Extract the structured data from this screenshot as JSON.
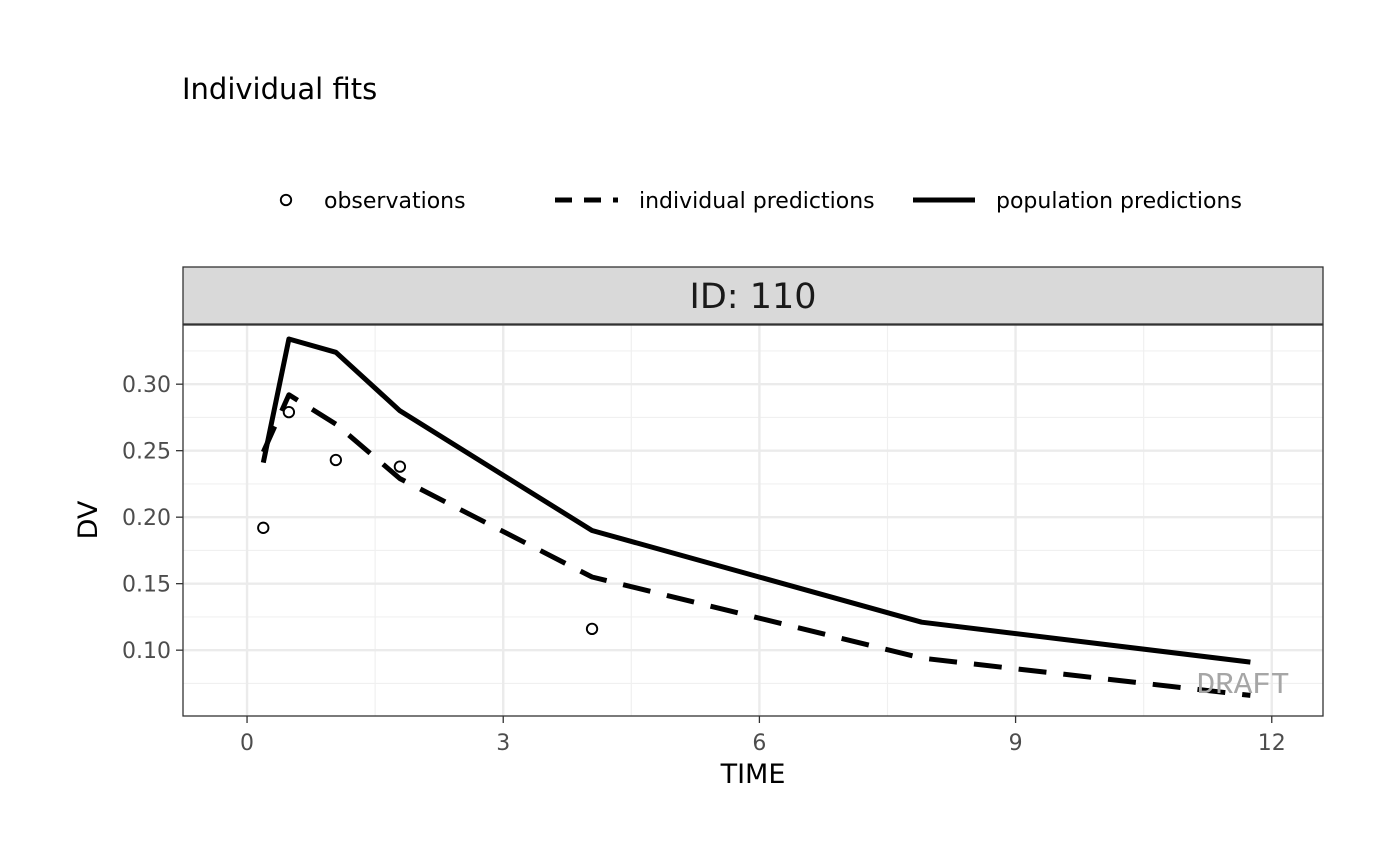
{
  "chart_data": {
    "type": "line",
    "title": "Individual fits",
    "xlabel": "TIME",
    "ylabel": "DV",
    "facet_label": "ID: 110",
    "watermark": "DRAFT",
    "legend_position": "top",
    "grid": true,
    "xlim": [
      -0.75,
      12.6
    ],
    "ylim": [
      0.0505,
      0.3445
    ],
    "x_ticks": [
      0,
      3,
      6,
      9,
      12
    ],
    "x_tick_labels": [
      "0",
      "3",
      "6",
      "9",
      "12"
    ],
    "y_ticks": [
      0.1,
      0.15,
      0.2,
      0.25,
      0.3
    ],
    "y_tick_labels": [
      "0.10",
      "0.15",
      "0.20",
      "0.25",
      "0.30"
    ],
    "legend": [
      {
        "label": "observations",
        "style": "point"
      },
      {
        "label": "individual predictions",
        "style": "dashed"
      },
      {
        "label": "population predictions",
        "style": "solid"
      }
    ],
    "series": [
      {
        "name": "observations",
        "kind": "points",
        "x": [
          0.19,
          0.49,
          1.04,
          1.79,
          4.04
        ],
        "y": [
          0.192,
          0.279,
          0.243,
          0.238,
          0.116
        ]
      },
      {
        "name": "individual predictions",
        "kind": "dashed",
        "x": [
          0.19,
          0.49,
          1.04,
          1.79,
          4.04,
          7.9,
          11.75
        ],
        "y": [
          0.249,
          0.292,
          0.27,
          0.229,
          0.155,
          0.094,
          0.066
        ]
      },
      {
        "name": "population predictions",
        "kind": "solid",
        "x": [
          0.19,
          0.49,
          1.04,
          1.79,
          4.04,
          7.9,
          11.75
        ],
        "y": [
          0.241,
          0.334,
          0.324,
          0.28,
          0.19,
          0.121,
          0.091
        ]
      }
    ]
  }
}
